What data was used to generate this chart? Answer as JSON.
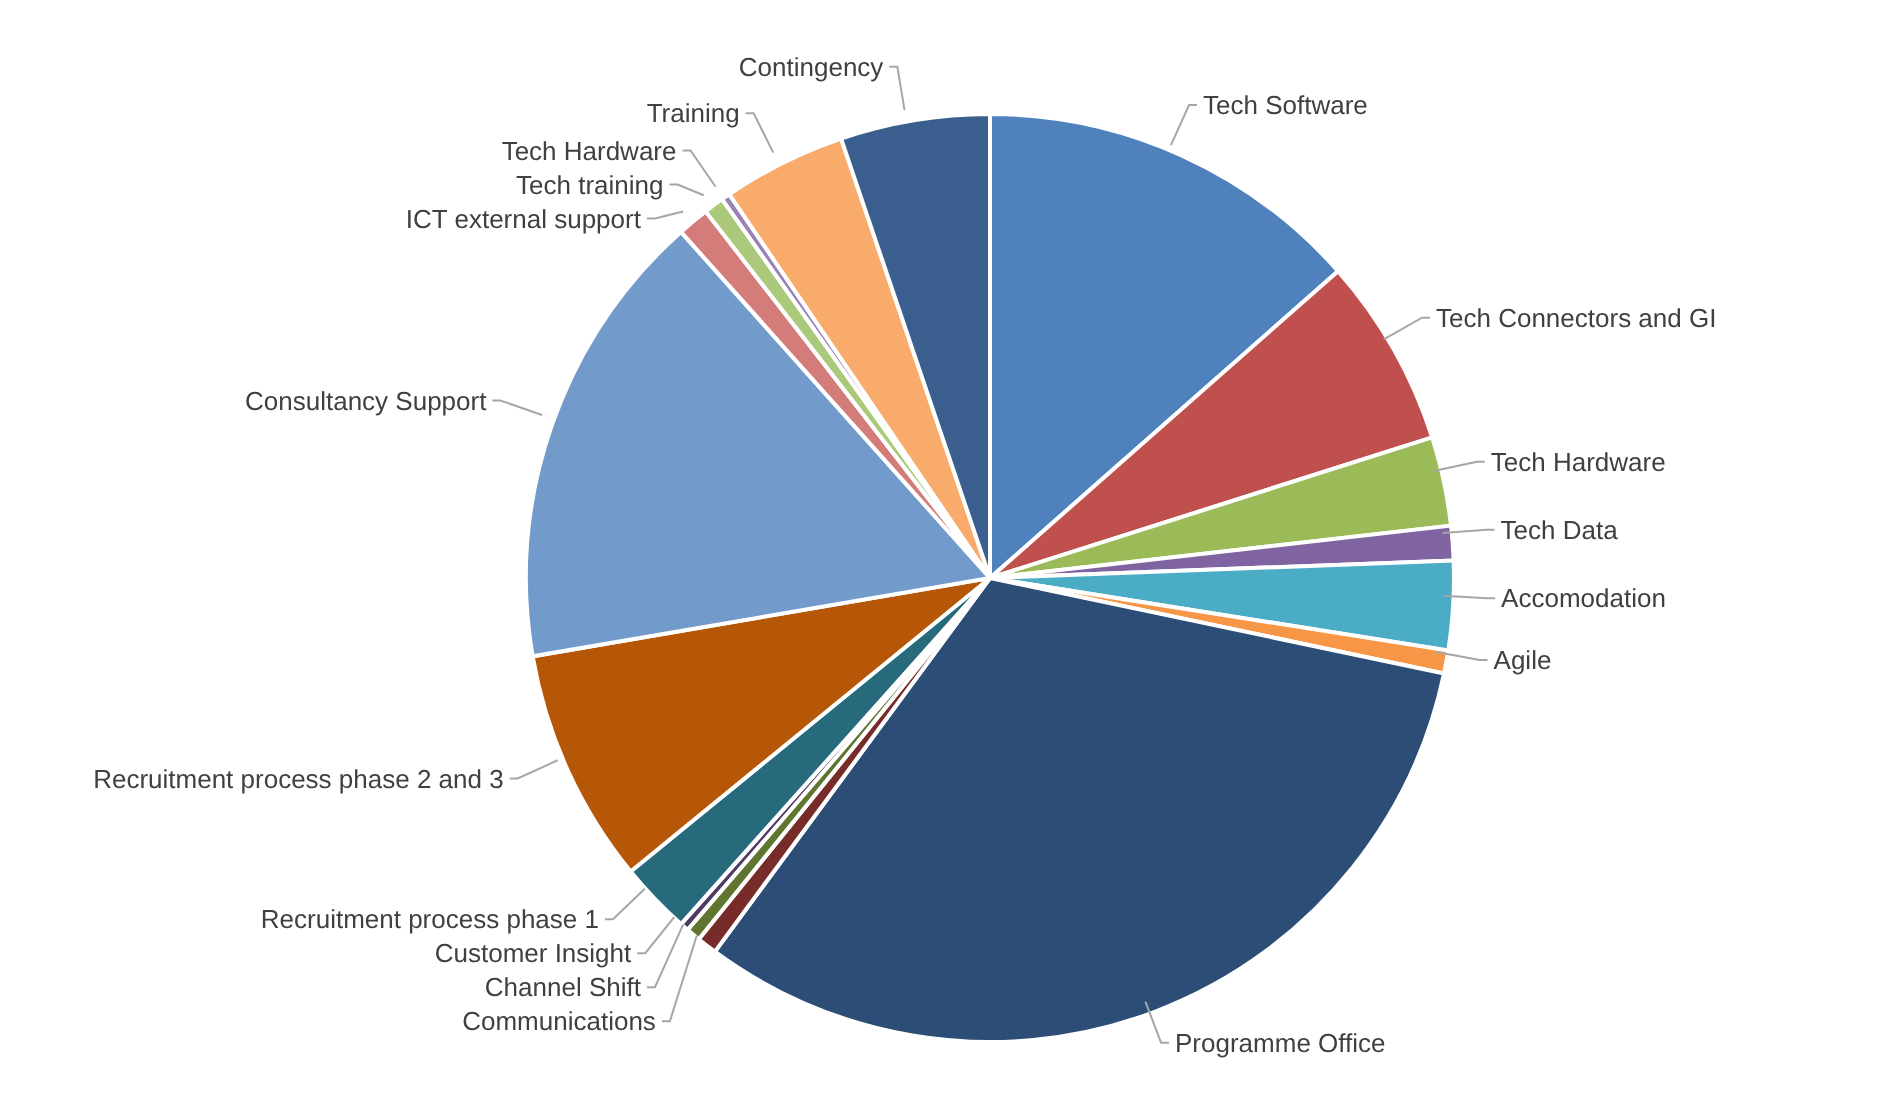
{
  "chart_data": {
    "type": "pie",
    "categories": [
      "Tech Software",
      "Tech Connectors and GI",
      "Tech Hardware",
      "Tech Data",
      "Accomodation",
      "Agile",
      "Programme Office",
      "Communications",
      "Channel Shift",
      "Customer Insight",
      "Recruitment process phase 1",
      "Recruitment process phase 2 and 3",
      "Consultancy Support",
      "ICT external support",
      "Tech training",
      "Tech Hardware",
      "Training",
      "Contingency"
    ],
    "values": [
      13.5,
      6.6,
      3.1,
      1.2,
      3.1,
      0.8,
      31.8,
      0.7,
      0.5,
      0.3,
      2.5,
      8.2,
      16.1,
      1.1,
      0.7,
      0.3,
      4.3,
      5.2
    ],
    "colors": [
      "#4f81bd",
      "#c0504d",
      "#9bbb59",
      "#8064a2",
      "#4bacc6",
      "#f79646",
      "#2c4d75",
      "#772c2a",
      "#5f7530",
      "#4d3b62",
      "#276a7c",
      "#b65708",
      "#729aca",
      "#d37c7a",
      "#aac97b",
      "#9983b5",
      "#f9ab6b",
      "#3a5f8f"
    ],
    "legend": false
  }
}
